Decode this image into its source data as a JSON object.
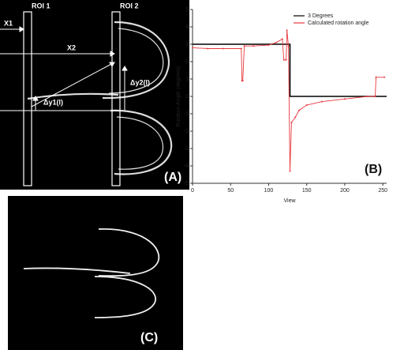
{
  "panels": {
    "a": {
      "roi1": "ROI 1",
      "roi2": "ROI 2",
      "x1": "X1",
      "x2": "X2",
      "dy1": "Δy1(l)",
      "dy2": "Δy2(l)",
      "label": "(A)"
    },
    "c": {
      "label": "(C)"
    }
  },
  "chart_data": {
    "type": "line",
    "panel_label": "(B)",
    "x_label": "View",
    "y_label": "Rotation Angle (degrees)",
    "xlim": [
      0,
      255
    ],
    "ylim": [
      -5,
      5
    ],
    "xticks": [
      0,
      50,
      100,
      150,
      200,
      250
    ],
    "yticks": [
      -5,
      -4,
      -3,
      -2,
      -1,
      0,
      1,
      2,
      3,
      4,
      5
    ],
    "legend": "upper right",
    "series": [
      {
        "name": "3 Degrees",
        "color": "#000000",
        "x": [
          0,
          128,
          128,
          255
        ],
        "values": [
          3,
          3,
          0,
          0
        ]
      },
      {
        "name": "Calculated rotation angle",
        "color": "#e8383d",
        "x": [
          0,
          20,
          40,
          64,
          65,
          66,
          68,
          80,
          100,
          110,
          118,
          120,
          123,
          124,
          126,
          128,
          130,
          135,
          140,
          150,
          170,
          200,
          230,
          240,
          241,
          252
        ],
        "values": [
          2.8,
          2.75,
          2.75,
          2.75,
          0.9,
          0.9,
          2.9,
          2.9,
          2.95,
          3.1,
          3.3,
          2.1,
          2.1,
          3.8,
          2.9,
          -4.3,
          -1.5,
          -1.2,
          -0.8,
          -0.5,
          -0.3,
          -0.15,
          0,
          0,
          1.1,
          1.1
        ]
      }
    ]
  }
}
